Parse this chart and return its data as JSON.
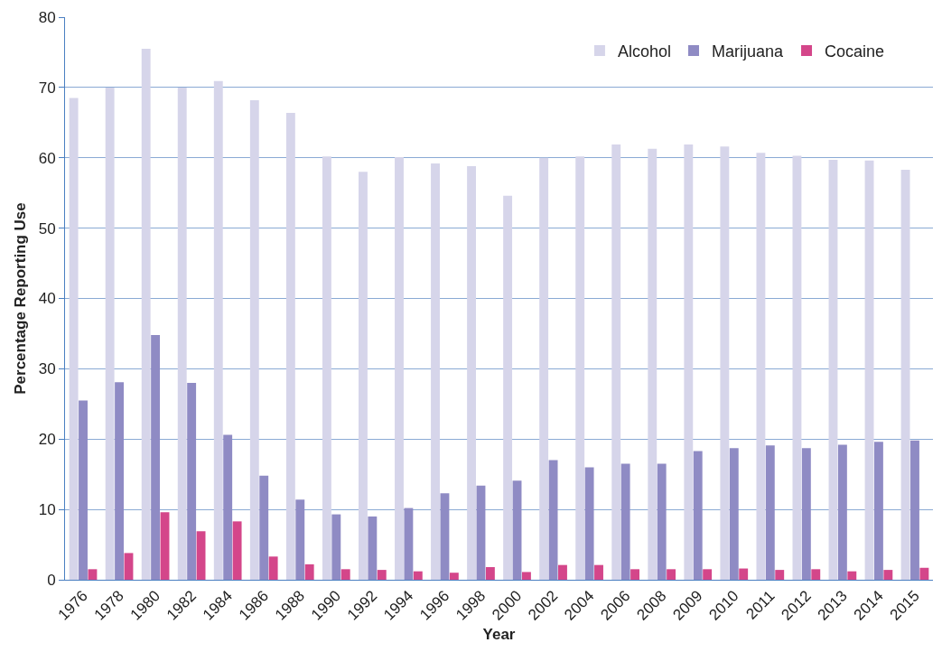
{
  "chart_data": {
    "type": "bar",
    "xlabel": "Year",
    "ylabel": "Percentage Reporting Use",
    "categories": [
      "1976",
      "1978",
      "1980",
      "1982",
      "1984",
      "1986",
      "1988",
      "1990",
      "1992",
      "1994",
      "1996",
      "1998",
      "2000",
      "2002",
      "2004",
      "2006",
      "2008",
      "2009",
      "2010",
      "2011",
      "2012",
      "2013",
      "2014",
      "2015"
    ],
    "series": [
      {
        "name": "Alcohol",
        "color": "#d6d5ea",
        "values": [
          68.5,
          70.0,
          75.5,
          70.0,
          70.9,
          68.2,
          66.4,
          60.2,
          58.0,
          60.1,
          59.2,
          58.8,
          54.6,
          60.0,
          60.2,
          61.9,
          61.3,
          61.9,
          61.6,
          60.7,
          60.3,
          59.7,
          59.6,
          58.3
        ]
      },
      {
        "name": "Marijuana",
        "color": "#8f8bc4",
        "values": [
          25.5,
          28.1,
          34.8,
          28.0,
          20.6,
          14.8,
          11.4,
          9.3,
          9.0,
          10.2,
          12.3,
          13.4,
          14.1,
          17.0,
          16.0,
          16.5,
          16.5,
          18.3,
          18.7,
          19.1,
          18.7,
          19.2,
          19.6,
          19.8
        ]
      },
      {
        "name": "Cocaine",
        "color": "#d4468a",
        "values": [
          1.5,
          3.8,
          9.6,
          6.9,
          8.3,
          3.3,
          2.2,
          1.5,
          1.4,
          1.2,
          1.0,
          1.8,
          1.1,
          2.1,
          2.1,
          1.5,
          1.5,
          1.5,
          1.6,
          1.4,
          1.5,
          1.2,
          1.4,
          1.7
        ]
      }
    ],
    "ylim": [
      0,
      80
    ],
    "yticks": [
      0,
      10,
      20,
      30,
      40,
      50,
      60,
      70,
      80
    ],
    "grid": "y",
    "legend": "top right"
  }
}
